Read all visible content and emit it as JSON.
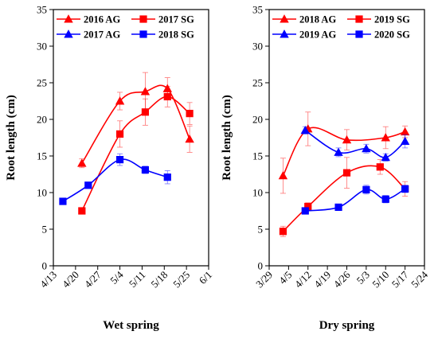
{
  "chart_data": [
    {
      "type": "line",
      "xlabel": "Wet spring",
      "ylabel": "Root length  (cm)",
      "ylim": [
        0,
        35
      ],
      "yticks": [
        0,
        5,
        10,
        15,
        20,
        25,
        30,
        35
      ],
      "xlim": [
        "2000-04-13",
        "2000-06-01"
      ],
      "xticks": [
        "4/13",
        "4/20",
        "4/27",
        "5/4",
        "5/11",
        "5/18",
        "5/25",
        "6/1"
      ],
      "xtick_dates": [
        "2000-04-13",
        "2000-04-20",
        "2000-04-27",
        "2000-05-04",
        "2000-05-11",
        "2000-05-18",
        "2000-05-25",
        "2000-06-01"
      ],
      "grid": false,
      "legend_position": "top",
      "series": [
        {
          "name": "2016 AG",
          "color": "#ff0000",
          "marker": "triangle",
          "points": [
            {
              "x": "2000-04-22",
              "y": 14.0,
              "err": 0.6
            },
            {
              "x": "2000-05-04",
              "y": 22.5,
              "err": 1.2
            },
            {
              "x": "2000-05-12",
              "y": 23.8,
              "err": 2.6
            },
            {
              "x": "2000-05-19",
              "y": 24.2,
              "err": 1.5
            },
            {
              "x": "2000-05-26",
              "y": 17.3,
              "err": 1.8
            }
          ]
        },
        {
          "name": "2017 SG",
          "color": "#ff0000",
          "marker": "square",
          "points": [
            {
              "x": "2000-04-22",
              "y": 7.5,
              "err": 0.3
            },
            {
              "x": "2000-05-04",
              "y": 18.0,
              "err": 1.8
            },
            {
              "x": "2000-05-12",
              "y": 21.0,
              "err": 1.8
            },
            {
              "x": "2000-05-19",
              "y": 23.1,
              "err": 1.4
            },
            {
              "x": "2000-05-26",
              "y": 20.8,
              "err": 1.5
            }
          ]
        },
        {
          "name": "2017 AG",
          "color": "#0000ff",
          "marker": "triangle",
          "points": []
        },
        {
          "name": "2018 SG",
          "color": "#0000ff",
          "marker": "square",
          "points": [
            {
              "x": "2000-04-16",
              "y": 8.8,
              "err": 0.3
            },
            {
              "x": "2000-04-24",
              "y": 11.0,
              "err": 0.4
            },
            {
              "x": "2000-05-04",
              "y": 14.5,
              "err": 0.8
            },
            {
              "x": "2000-05-12",
              "y": 13.1,
              "err": 0.5
            },
            {
              "x": "2000-05-19",
              "y": 12.1,
              "err": 0.9
            }
          ]
        }
      ]
    },
    {
      "type": "line",
      "xlabel": "Dry spring",
      "ylabel": "Root length (cm)",
      "ylim": [
        0,
        35
      ],
      "yticks": [
        0,
        5,
        10,
        15,
        20,
        25,
        30,
        35
      ],
      "xlim": [
        "2000-03-29",
        "2000-05-24"
      ],
      "xticks": [
        "3/29",
        "4/5",
        "4/12",
        "4/19",
        "4/26",
        "5/3",
        "5/10",
        "5/17",
        "5/24"
      ],
      "xtick_dates": [
        "2000-03-29",
        "2000-04-05",
        "2000-04-12",
        "2000-04-19",
        "2000-04-26",
        "2000-05-03",
        "2000-05-10",
        "2000-05-17",
        "2000-05-24"
      ],
      "grid": false,
      "legend_position": "top",
      "series": [
        {
          "name": "2018 AG",
          "color": "#ff0000",
          "marker": "triangle",
          "points": [
            {
              "x": "2000-04-03",
              "y": 12.3,
              "err": 2.4
            },
            {
              "x": "2000-04-12",
              "y": 18.7,
              "err": 2.3
            },
            {
              "x": "2000-04-26",
              "y": 17.2,
              "err": 1.4
            },
            {
              "x": "2000-05-10",
              "y": 17.5,
              "err": 1.5
            },
            {
              "x": "2000-05-17",
              "y": 18.3,
              "err": 0.8
            }
          ]
        },
        {
          "name": "2019 SG",
          "color": "#ff0000",
          "marker": "square",
          "points": [
            {
              "x": "2000-04-03",
              "y": 4.7,
              "err": 0.7
            },
            {
              "x": "2000-04-12",
              "y": 8.1,
              "err": 0.5
            },
            {
              "x": "2000-04-26",
              "y": 12.7,
              "err": 2.1
            },
            {
              "x": "2000-05-08",
              "y": 13.5,
              "err": 1.0
            },
            {
              "x": "2000-05-17",
              "y": 10.5,
              "err": 1.0
            }
          ]
        },
        {
          "name": "2019 AG",
          "color": "#0000ff",
          "marker": "triangle",
          "points": [
            {
              "x": "2000-04-11",
              "y": 18.5,
              "err": 0.5
            },
            {
              "x": "2000-04-23",
              "y": 15.5,
              "err": 0.6
            },
            {
              "x": "2000-05-03",
              "y": 16.0,
              "err": 0.6
            },
            {
              "x": "2000-05-10",
              "y": 14.8,
              "err": 0.5
            },
            {
              "x": "2000-05-17",
              "y": 17.0,
              "err": 0.9
            }
          ]
        },
        {
          "name": "2020 SG",
          "color": "#0000ff",
          "marker": "square",
          "points": [
            {
              "x": "2000-04-11",
              "y": 7.5,
              "err": 0.3
            },
            {
              "x": "2000-04-23",
              "y": 8.0,
              "err": 0.3
            },
            {
              "x": "2000-05-03",
              "y": 10.4,
              "err": 0.6
            },
            {
              "x": "2000-05-10",
              "y": 9.1,
              "err": 0.5
            },
            {
              "x": "2000-05-17",
              "y": 10.5,
              "err": 0.5
            }
          ]
        }
      ]
    }
  ]
}
